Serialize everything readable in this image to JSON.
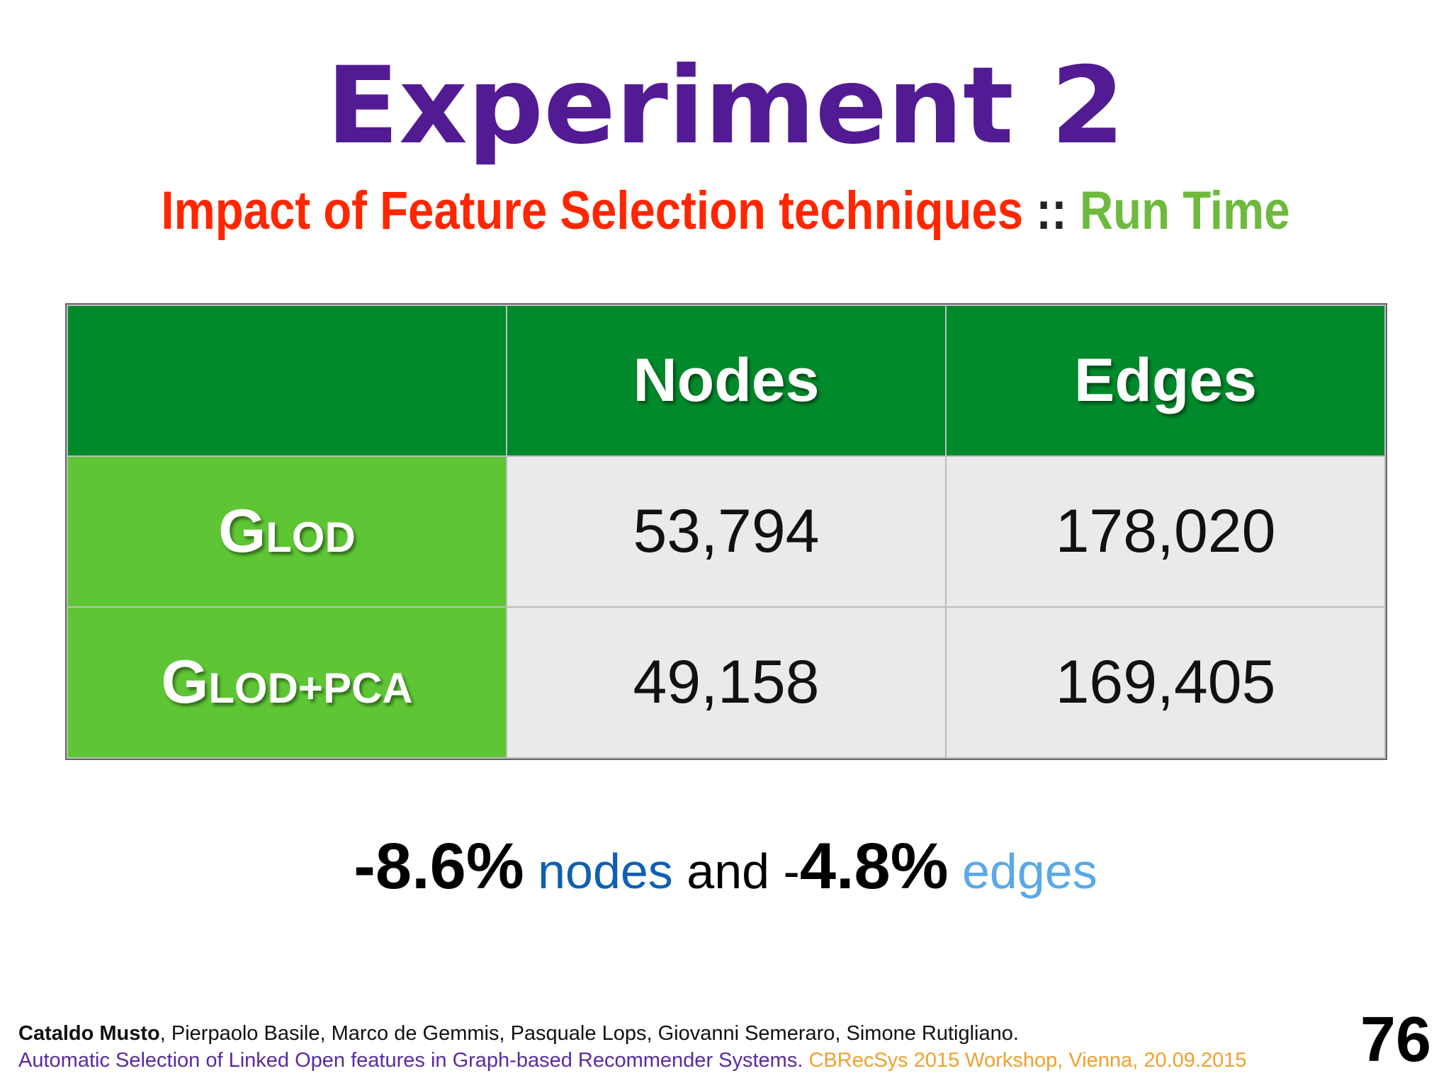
{
  "slide": {
    "title": "Experiment 2",
    "subtitle": {
      "part1": "Impact of Feature Selection techniques",
      "separator": " :: ",
      "part2": "Run Time"
    }
  },
  "table": {
    "columns": [
      "",
      "Nodes",
      "Edges"
    ],
    "rows": [
      {
        "label_initial": "G",
        "label_rest": "LOD",
        "nodes": "53,794",
        "edges": "178,020"
      },
      {
        "label_initial": "G",
        "label_rest": "LOD+PCA",
        "nodes": "49,158",
        "edges": "169,405"
      }
    ]
  },
  "summary": {
    "nodes_change": "-8.6%",
    "nodes_word": " nodes",
    "and_word": " and ",
    "minus": "-",
    "edges_change": "4.8%",
    "edges_word": " edges"
  },
  "footer": {
    "lead_author": "Cataldo Musto",
    "other_authors": ", Pierpaolo Basile, Marco de Gemmis, Pasquale Lops, Giovanni Semeraro, Simone Rutigliano.",
    "paper_title": "Automatic Selection of Linked Open features in Graph-based Recommender Systems.",
    "venue": " CBRecSys 2015 Workshop, Vienna, 20.09.2015"
  },
  "page_number": "76",
  "colors": {
    "title": "#531b93",
    "subtitle_red": "#ff2600",
    "subtitle_green": "#6dba3c",
    "header_green": "#008a2b",
    "row_head_green": "#5ec634",
    "cell_gray": "#e9eae9"
  }
}
